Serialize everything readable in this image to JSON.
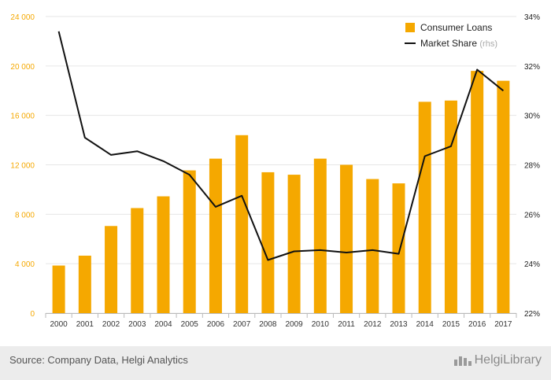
{
  "chart_data": {
    "type": "bar",
    "categories": [
      "2000",
      "2001",
      "2002",
      "2003",
      "2004",
      "2005",
      "2006",
      "2007",
      "2008",
      "2009",
      "2010",
      "2011",
      "2012",
      "2013",
      "2014",
      "2015",
      "2016",
      "2017"
    ],
    "series": [
      {
        "name": "Consumer Loans",
        "type": "bar",
        "axis": "left",
        "color": "#f5a800",
        "values": [
          3850,
          4650,
          7050,
          8500,
          9450,
          11550,
          12500,
          14400,
          11400,
          11200,
          12500,
          12000,
          10850,
          10500,
          17100,
          17200,
          19600,
          18800
        ]
      },
      {
        "name": "Market Share",
        "name_suffix": "(rhs)",
        "type": "line",
        "axis": "right",
        "color": "#111111",
        "values": [
          33.4,
          29.1,
          28.4,
          28.55,
          28.15,
          27.6,
          26.3,
          26.75,
          24.15,
          24.5,
          24.55,
          24.45,
          24.55,
          24.4,
          28.35,
          28.75,
          31.85,
          31.0
        ]
      }
    ],
    "y_left": {
      "min": 0,
      "max": 24000,
      "ticks": [
        0,
        4000,
        8000,
        12000,
        16000,
        20000,
        24000
      ],
      "tick_labels": [
        "0",
        "4 000",
        "8 000",
        "12 000",
        "16 000",
        "20 000",
        "24 000"
      ],
      "label_color": "#f5a800"
    },
    "y_right": {
      "min": 22,
      "max": 34,
      "ticks": [
        22,
        24,
        26,
        28,
        30,
        32,
        34
      ],
      "tick_labels": [
        "22%",
        "24%",
        "26%",
        "28%",
        "30%",
        "32%",
        "34%"
      ]
    },
    "legend_position": "top-right",
    "grid": true,
    "title": "",
    "xlabel": "",
    "ylabel": ""
  },
  "footer": {
    "source": "Source: Company Data, Helgi Analytics",
    "brand": "HelgiLibrary"
  }
}
